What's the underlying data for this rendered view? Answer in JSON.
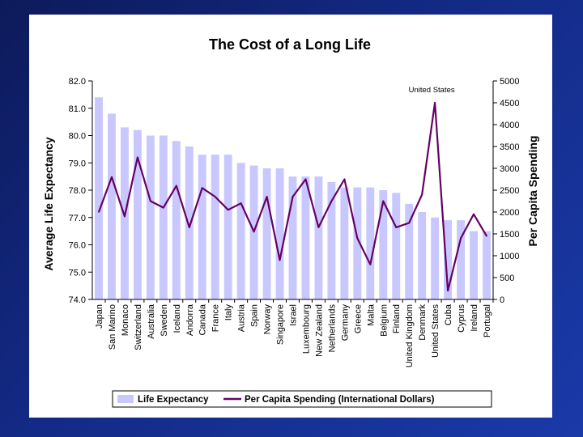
{
  "chart_data": {
    "type": "bar",
    "title": "The Cost of a Long Life",
    "ylabel": "Average Life Expectancy",
    "y2label": "Per Capita Spending",
    "ylim": [
      74.0,
      82.0
    ],
    "y2lim": [
      0,
      5000
    ],
    "yticks": [
      "74.0",
      "75.0",
      "76.0",
      "77.0",
      "78.0",
      "79.0",
      "80.0",
      "81.0",
      "82.0"
    ],
    "y2ticks": [
      "0",
      "500",
      "1000",
      "1500",
      "2000",
      "2500",
      "3000",
      "3500",
      "4000",
      "4500",
      "5000"
    ],
    "grid": false,
    "legend_position": "bottom",
    "categories": [
      "Japan",
      "San Marino",
      "Monaco",
      "Switzerland",
      "Australia",
      "Sweden",
      "Iceland",
      "Andorra",
      "Canada",
      "France",
      "Italy",
      "Austria",
      "Spain",
      "Norway",
      "Singapore",
      "Israel",
      "Luxembourg",
      "New Zealand",
      "Netherlands",
      "Germany",
      "Greece",
      "Malta",
      "Belgium",
      "Finland",
      "United Kingdom",
      "Denmark",
      "United States",
      "Cuba",
      "Cyprus",
      "Ireland",
      "Portugal"
    ],
    "series": [
      {
        "name": "Life Expectancy",
        "type": "bar",
        "axis": "left",
        "color": "#c8c8ff",
        "values": [
          81.4,
          80.8,
          80.3,
          80.2,
          80.0,
          80.0,
          79.8,
          79.6,
          79.3,
          79.3,
          79.3,
          79.0,
          78.9,
          78.8,
          78.8,
          78.5,
          78.5,
          78.5,
          78.3,
          78.1,
          78.1,
          78.1,
          78.0,
          77.9,
          77.5,
          77.2,
          77.0,
          76.9,
          76.9,
          76.5,
          76.5
        ]
      },
      {
        "name": "Per Capita Spending (International Dollars)",
        "type": "line",
        "axis": "right",
        "color": "#660066",
        "values": [
          2000,
          2800,
          1900,
          3250,
          2250,
          2100,
          2600,
          1650,
          2550,
          2350,
          2050,
          2200,
          1550,
          2350,
          900,
          2350,
          2750,
          1650,
          2250,
          2750,
          1400,
          800,
          2250,
          1650,
          1750,
          2400,
          4500,
          200,
          1400,
          1950,
          1450
        ]
      }
    ],
    "annotations": [
      {
        "text": "United States",
        "category": "United States"
      }
    ]
  }
}
